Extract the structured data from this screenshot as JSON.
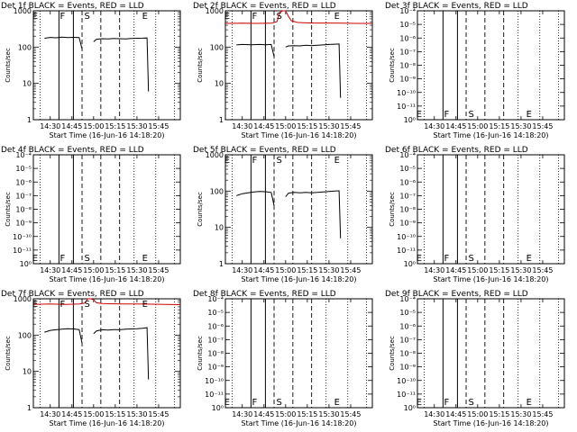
{
  "xlabel": "Start Time (16-Jun-16 14:18:20)",
  "ylabel": "Counts/sec",
  "x_ticks": [
    "14:30",
    "14:45",
    "15:00",
    "15:15",
    "15:30",
    "15:45"
  ],
  "x_ticks_min": [
    30,
    45,
    60,
    75,
    90,
    105
  ],
  "x_range_min": [
    18.3,
    120
  ],
  "y_range": [
    1,
    1000
  ],
  "y_scale": "log",
  "y_tick_labels_normal": [
    "1000",
    "100",
    "10",
    "1"
  ],
  "y_tick_labels_degenerate": [
    "10⁻⁴",
    "10⁻⁵",
    "10⁻⁶",
    "10⁻⁷",
    "10⁻⁸",
    "10⁻⁹",
    "10⁻¹⁰",
    "10⁻¹¹",
    "10⁰"
  ],
  "colors": {
    "events": "#000000",
    "lld": "#cc0000"
  },
  "chart_data": [
    {
      "type": "line",
      "title": "Det 1f BLACK = Events, RED = LLD",
      "y_mode": "normal",
      "markers": [
        {
          "label": "E",
          "x": 19.5,
          "pos": "top"
        },
        {
          "label": "F",
          "x": 38.5,
          "pos": "top"
        },
        {
          "label": "S",
          "x": 55.5,
          "pos": "top"
        },
        {
          "label": "E",
          "x": 95.5,
          "pos": "top"
        }
      ],
      "solid_lines": [
        36,
        46
      ],
      "dashed_lines": [
        52,
        65,
        78
      ],
      "dotted_lines": [
        23,
        88,
        103,
        116
      ],
      "series": [
        {
          "name": "Events",
          "color": "#000000",
          "segments": [
            [
              [
                26,
                175
              ],
              [
                30,
                185
              ],
              [
                34,
                180
              ],
              [
                38,
                188
              ],
              [
                42,
                182
              ],
              [
                46,
                186
              ],
              [
                50,
                184
              ],
              [
                52,
                90
              ]
            ],
            [
              [
                60,
                140
              ],
              [
                62,
                165
              ],
              [
                66,
                170
              ],
              [
                70,
                168
              ],
              [
                74,
                172
              ],
              [
                78,
                170
              ],
              [
                82,
                168
              ],
              [
                86,
                172
              ],
              [
                90,
                175
              ],
              [
                94,
                176
              ],
              [
                97,
                178
              ],
              [
                98,
                6
              ]
            ]
          ]
        }
      ]
    },
    {
      "type": "line",
      "title": "Det 2f BLACK = Events, RED = LLD",
      "y_mode": "normal",
      "markers": [
        {
          "label": "E",
          "x": 19.5,
          "pos": "top"
        },
        {
          "label": "F",
          "x": 38.5,
          "pos": "top"
        },
        {
          "label": "S",
          "x": 55.5,
          "pos": "top"
        },
        {
          "label": "E",
          "x": 95.5,
          "pos": "top"
        }
      ],
      "solid_lines": [
        36,
        46
      ],
      "dashed_lines": [
        52,
        65,
        78
      ],
      "dotted_lines": [
        23,
        88,
        103,
        116
      ],
      "series": [
        {
          "name": "LLD",
          "color": "#cc0000",
          "segments": [
            [
              [
                18.3,
                450
              ],
              [
                30,
                455
              ],
              [
                40,
                450
              ],
              [
                50,
                455
              ],
              [
                54,
                500
              ],
              [
                56,
                900
              ],
              [
                58,
                1100
              ],
              [
                60,
                1050
              ],
              [
                62,
                700
              ],
              [
                64,
                530
              ],
              [
                68,
                480
              ],
              [
                72,
                470
              ],
              [
                80,
                460
              ],
              [
                90,
                460
              ],
              [
                100,
                455
              ],
              [
                110,
                450
              ],
              [
                120,
                450
              ]
            ]
          ]
        },
        {
          "name": "Events",
          "color": "#000000",
          "segments": [
            [
              [
                26,
                115
              ],
              [
                30,
                118
              ],
              [
                36,
                116
              ],
              [
                42,
                118
              ],
              [
                46,
                116
              ],
              [
                50,
                118
              ],
              [
                52,
                55
              ]
            ],
            [
              [
                60,
                100
              ],
              [
                62,
                108
              ],
              [
                66,
                110
              ],
              [
                70,
                108
              ],
              [
                74,
                112
              ],
              [
                78,
                110
              ],
              [
                82,
                112
              ],
              [
                86,
                115
              ],
              [
                90,
                118
              ],
              [
                94,
                120
              ],
              [
                97,
                122
              ],
              [
                98,
                4
              ]
            ]
          ]
        }
      ]
    },
    {
      "type": "line",
      "title": "Det 3f BLACK = Events, RED = LLD",
      "y_mode": "degenerate",
      "markers": [
        {
          "label": "E",
          "x": 19.5,
          "pos": "bottom"
        },
        {
          "label": "F",
          "x": 38.5,
          "pos": "bottom"
        },
        {
          "label": "S",
          "x": 55.5,
          "pos": "bottom"
        },
        {
          "label": "E",
          "x": 95.5,
          "pos": "bottom"
        }
      ],
      "solid_lines": [
        36,
        46
      ],
      "dashed_lines": [
        52,
        65,
        78
      ],
      "dotted_lines": [
        23,
        88,
        103,
        116
      ],
      "series": []
    },
    {
      "type": "line",
      "title": "Det 4f BLACK = Events, RED = LLD",
      "y_mode": "degenerate",
      "markers": [
        {
          "label": "E",
          "x": 19.5,
          "pos": "bottom"
        },
        {
          "label": "F",
          "x": 38.5,
          "pos": "bottom"
        },
        {
          "label": "S",
          "x": 55.5,
          "pos": "bottom"
        },
        {
          "label": "E",
          "x": 95.5,
          "pos": "bottom"
        }
      ],
      "solid_lines": [
        36,
        46
      ],
      "dashed_lines": [
        52,
        65,
        78
      ],
      "dotted_lines": [
        23,
        88,
        103,
        116
      ],
      "series": []
    },
    {
      "type": "line",
      "title": "Det 5f BLACK = Events, RED = LLD",
      "y_mode": "normal",
      "markers": [
        {
          "label": "E",
          "x": 19.5,
          "pos": "top"
        },
        {
          "label": "F",
          "x": 38.5,
          "pos": "top"
        },
        {
          "label": "S",
          "x": 55.5,
          "pos": "top"
        },
        {
          "label": "E",
          "x": 95.5,
          "pos": "top"
        }
      ],
      "solid_lines": [
        36,
        46
      ],
      "dashed_lines": [
        52,
        65,
        78
      ],
      "dotted_lines": [
        23,
        88,
        103,
        116
      ],
      "series": [
        {
          "name": "Events",
          "color": "#000000",
          "segments": [
            [
              [
                26,
                75
              ],
              [
                30,
                85
              ],
              [
                34,
                90
              ],
              [
                38,
                95
              ],
              [
                42,
                98
              ],
              [
                46,
                96
              ],
              [
                50,
                92
              ],
              [
                52,
                40
              ]
            ],
            [
              [
                60,
                70
              ],
              [
                62,
                88
              ],
              [
                66,
                92
              ],
              [
                70,
                90
              ],
              [
                74,
                92
              ],
              [
                78,
                90
              ],
              [
                82,
                92
              ],
              [
                86,
                95
              ],
              [
                90,
                98
              ],
              [
                94,
                100
              ],
              [
                97,
                102
              ],
              [
                98,
                5
              ]
            ]
          ]
        }
      ]
    },
    {
      "type": "line",
      "title": "Det 6f BLACK = Events, RED = LLD",
      "y_mode": "degenerate",
      "markers": [
        {
          "label": "E",
          "x": 19.5,
          "pos": "bottom"
        },
        {
          "label": "F",
          "x": 38.5,
          "pos": "bottom"
        },
        {
          "label": "S",
          "x": 55.5,
          "pos": "bottom"
        },
        {
          "label": "E",
          "x": 95.5,
          "pos": "bottom"
        }
      ],
      "solid_lines": [
        36,
        46
      ],
      "dashed_lines": [
        52,
        65,
        78
      ],
      "dotted_lines": [
        23,
        88,
        103,
        116
      ],
      "series": []
    },
    {
      "type": "line",
      "title": "Det 7f BLACK = Events, RED = LLD",
      "y_mode": "normal",
      "markers": [
        {
          "label": "E",
          "x": 19.5,
          "pos": "top"
        },
        {
          "label": "F",
          "x": 38.5,
          "pos": "top"
        },
        {
          "label": "S",
          "x": 55.5,
          "pos": "top"
        },
        {
          "label": "E",
          "x": 95.5,
          "pos": "top"
        }
      ],
      "solid_lines": [
        36,
        46
      ],
      "dashed_lines": [
        52,
        65,
        78
      ],
      "dotted_lines": [
        23,
        88,
        103,
        116
      ],
      "series": [
        {
          "name": "LLD",
          "color": "#cc0000",
          "segments": [
            [
              [
                18.3,
                700
              ],
              [
                30,
                720
              ],
              [
                40,
                700
              ],
              [
                50,
                720
              ],
              [
                54,
                760
              ],
              [
                56,
                1050
              ],
              [
                58,
                1200
              ],
              [
                60,
                950
              ],
              [
                62,
                780
              ],
              [
                66,
                740
              ],
              [
                72,
                730
              ],
              [
                80,
                720
              ],
              [
                90,
                720
              ],
              [
                100,
                710
              ],
              [
                110,
                700
              ],
              [
                120,
                690
              ]
            ]
          ]
        },
        {
          "name": "Events",
          "color": "#000000",
          "segments": [
            [
              [
                26,
                120
              ],
              [
                30,
                135
              ],
              [
                34,
                140
              ],
              [
                38,
                145
              ],
              [
                42,
                150
              ],
              [
                46,
                148
              ],
              [
                50,
                142
              ],
              [
                52,
                60
              ]
            ],
            [
              [
                60,
                110
              ],
              [
                62,
                130
              ],
              [
                66,
                140
              ],
              [
                70,
                138
              ],
              [
                74,
                142
              ],
              [
                78,
                140
              ],
              [
                82,
                145
              ],
              [
                86,
                148
              ],
              [
                90,
                150
              ],
              [
                94,
                155
              ],
              [
                97,
                160
              ],
              [
                98,
                6
              ]
            ]
          ]
        }
      ]
    },
    {
      "type": "line",
      "title": "Det 8f BLACK = Events, RED = LLD",
      "y_mode": "degenerate",
      "markers": [
        {
          "label": "E",
          "x": 19.5,
          "pos": "bottom"
        },
        {
          "label": "F",
          "x": 38.5,
          "pos": "bottom"
        },
        {
          "label": "S",
          "x": 55.5,
          "pos": "bottom"
        },
        {
          "label": "E",
          "x": 95.5,
          "pos": "bottom"
        }
      ],
      "solid_lines": [
        36,
        46
      ],
      "dashed_lines": [
        52,
        65,
        78
      ],
      "dotted_lines": [
        23,
        88,
        103,
        116
      ],
      "series": []
    },
    {
      "type": "line",
      "title": "Det 9f BLACK = Events, RED = LLD",
      "y_mode": "degenerate",
      "markers": [
        {
          "label": "E",
          "x": 19.5,
          "pos": "bottom"
        },
        {
          "label": "F",
          "x": 38.5,
          "pos": "bottom"
        },
        {
          "label": "S",
          "x": 55.5,
          "pos": "bottom"
        },
        {
          "label": "E",
          "x": 95.5,
          "pos": "bottom"
        }
      ],
      "solid_lines": [
        36,
        46
      ],
      "dashed_lines": [
        52,
        65,
        78
      ],
      "dotted_lines": [
        23,
        88,
        103,
        116
      ],
      "series": []
    }
  ]
}
